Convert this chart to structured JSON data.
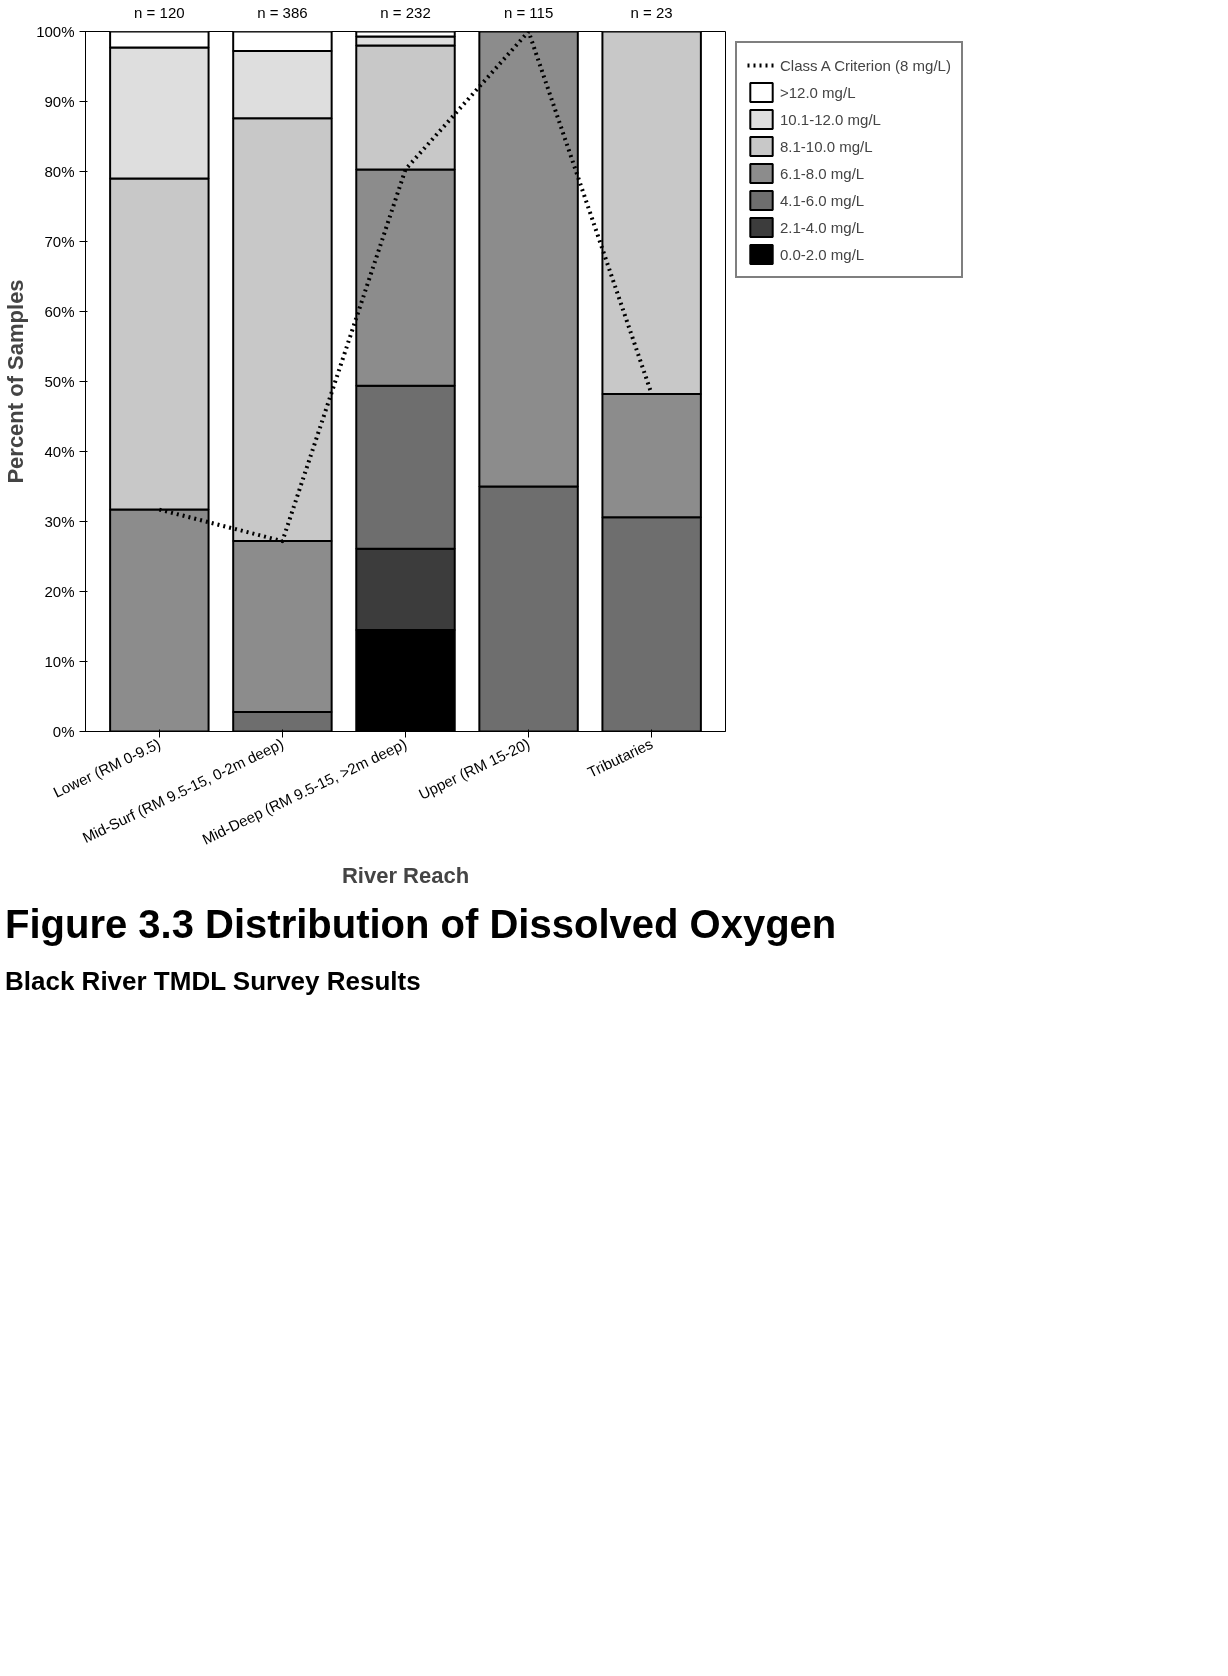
{
  "chart_data": {
    "type": "bar",
    "stacked": true,
    "title": "Figure 3.3  Distribution of Dissolved Oxygen",
    "subtitle": "Black River TMDL Survey Results",
    "xlabel": "River Reach",
    "ylabel": "Percent of Samples",
    "categories": [
      "Lower (RM 0-9.5)",
      "Mid-Surf (RM 9.5-15, 0-2m deep)",
      "Mid-Deep (RM 9.5-15, >2m deep)",
      "Upper (RM 15-20)",
      "Tributaries"
    ],
    "series": [
      {
        "name": "0.0-2.0 mg/L",
        "color": "#000000",
        "values": [
          0,
          0,
          14.5,
          0,
          0
        ]
      },
      {
        "name": "2.1-4.0 mg/L",
        "color": "#3c3c3c",
        "values": [
          0,
          0,
          11.6,
          0,
          0
        ]
      },
      {
        "name": "4.1-6.0 mg/L",
        "color": "#6e6e6e",
        "values": [
          0,
          2.8,
          23.3,
          35,
          30.6
        ]
      },
      {
        "name": "6.1-8.0 mg/L",
        "color": "#8c8c8c",
        "values": [
          31.7,
          24.4,
          30.9,
          65,
          17.6
        ]
      },
      {
        "name": "8.1-10.0 mg/L",
        "color": "#c8c8c8",
        "values": [
          47.3,
          60.4,
          17.7,
          0,
          51.8
        ]
      },
      {
        "name": "10.1-12.0 mg/L",
        "color": "#dedede",
        "values": [
          18.7,
          9.6,
          1.3,
          0,
          0
        ]
      },
      {
        "name": ">12.0 mg/L",
        "color": "#ffffff",
        "values": [
          2.3,
          2.8,
          0.7,
          0,
          0
        ]
      },
      {
        "name": "Class A Criterion (8 mg/L)",
        "type": "line",
        "line_style": "dotted",
        "color": "#000000",
        "values": [
          31.7,
          27.2,
          80.3,
          100,
          48.2
        ]
      }
    ],
    "ylim": [
      0,
      100
    ],
    "yticks": [
      {
        "value": 0,
        "label": "0%"
      },
      {
        "value": 10,
        "label": "10%"
      },
      {
        "value": 20,
        "label": "20%"
      },
      {
        "value": 30,
        "label": "30%"
      },
      {
        "value": 40,
        "label": "40%"
      },
      {
        "value": 50,
        "label": "50%"
      },
      {
        "value": 60,
        "label": "60%"
      },
      {
        "value": 70,
        "label": "70%"
      },
      {
        "value": 80,
        "label": "80%"
      },
      {
        "value": 90,
        "label": "90%"
      },
      {
        "value": 100,
        "label": "100%"
      }
    ],
    "annotations": [
      {
        "text": "n = 120",
        "x": "Lower (RM 0-9.5)",
        "y": 100
      },
      {
        "text": "n = 386",
        "x": "Mid-Surf (RM 9.5-15, 0-2m deep)",
        "y": 100
      },
      {
        "text": "n = 232",
        "x": "Mid-Deep (RM 9.5-15, >2m deep)",
        "y": 100
      },
      {
        "text": "n = 115",
        "x": "Upper (RM 15-20)",
        "y": 100
      },
      {
        "text": "n = 23",
        "x": "Tributaries",
        "y": 100
      }
    ],
    "grid": false,
    "legend": "right"
  }
}
